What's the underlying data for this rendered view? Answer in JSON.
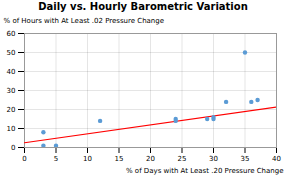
{
  "chart_data": {
    "type": "scatter",
    "title": "Daily vs. Hourly Barometric Variation",
    "xlabel": "% of Days with At Least .20 Pressure Change",
    "ylabel": "% of Hours with At Least .02 Pressure Change",
    "x": [
      3,
      3,
      5,
      12,
      24,
      24,
      29,
      30,
      30,
      32,
      35,
      36,
      37
    ],
    "series": [
      {
        "type": "scatter",
        "color": "#5b9bd5",
        "values": [
          8,
          1,
          1,
          14,
          14,
          15,
          15,
          16,
          15,
          24,
          50,
          24,
          25
        ]
      },
      {
        "type": "line",
        "color": "#ff0000",
        "x": [
          0,
          40
        ],
        "values": [
          2.5,
          21.3
        ]
      }
    ],
    "xlim": [
      0,
      40
    ],
    "ylim": [
      0,
      60
    ],
    "xticks": [
      0,
      5,
      10,
      15,
      20,
      25,
      30,
      35,
      40
    ],
    "yticks": [
      0,
      10,
      20,
      30,
      40,
      50,
      60
    ],
    "grid": true
  }
}
